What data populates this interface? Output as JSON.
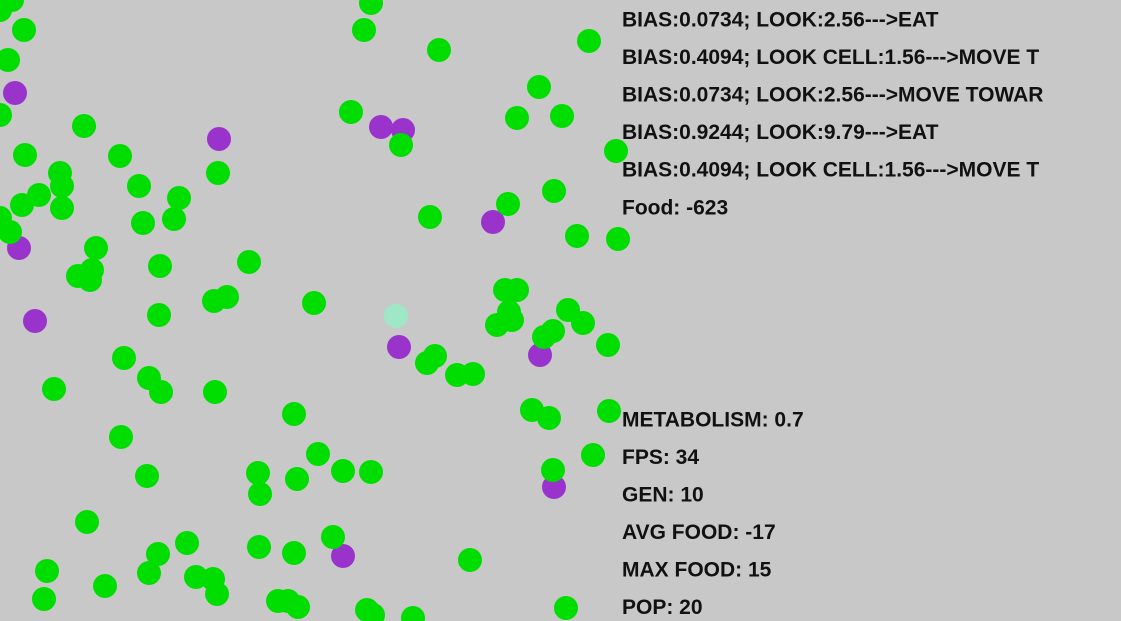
{
  "actions": [
    "BIAS:0.0734; LOOK:2.56--->EAT",
    "BIAS:0.4094; LOOK CELL:1.56--->MOVE T",
    "BIAS:0.0734; LOOK:2.56--->MOVE TOWAR",
    "BIAS:0.9244; LOOK:9.79--->EAT",
    "BIAS:0.4094; LOOK CELL:1.56--->MOVE T"
  ],
  "food": "Food: -623",
  "stats": [
    "METABOLISM: 0.7",
    "FPS: 34",
    "GEN: 10",
    "AVG FOOD: -17",
    "MAX FOOD: 15",
    "POP: 20"
  ]
}
